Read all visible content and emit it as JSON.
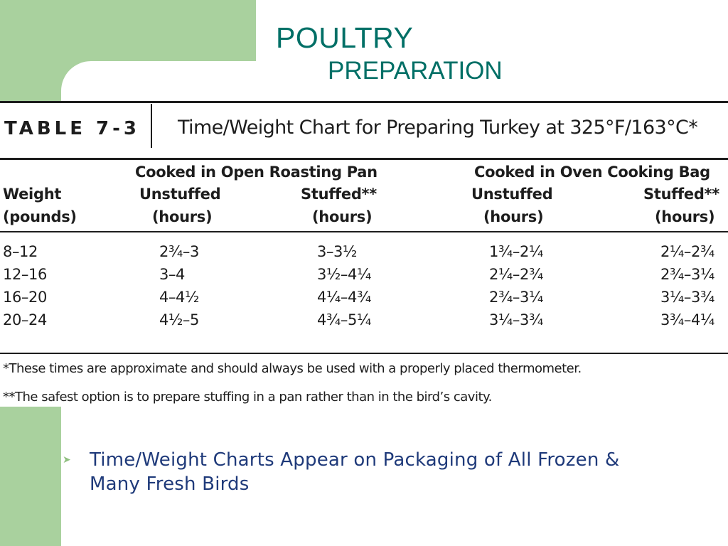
{
  "slide": {
    "title_line1": "POULTRY",
    "title_line2": "PREPARATION",
    "bullet": "Time/Weight Charts Appear on Packaging of All Frozen & Many Fresh Birds",
    "colors": {
      "accent_green": "#a9d19e",
      "title": "#006f66",
      "bullet_text": "#1f3a7a"
    }
  },
  "table": {
    "number": "TABLE 7-3",
    "title": "Time/Weight Chart for Preparing Turkey at 325°F/163°C*",
    "group_headers": [
      "Cooked in Open Roasting Pan",
      "Cooked in Oven Cooking Bag"
    ],
    "weight_header": [
      "Weight",
      "(pounds)"
    ],
    "col_headers": [
      [
        "Unstuffed",
        "(hours)"
      ],
      [
        "Stuffed**",
        "(hours)"
      ],
      [
        "Unstuffed",
        "(hours)"
      ],
      [
        "Stuffed**",
        "(hours)"
      ]
    ],
    "rows": [
      [
        "8–12",
        "2¾–3",
        "3–3½",
        "1¾–2¼",
        "2¼–2¾"
      ],
      [
        "12–16",
        "3–4",
        "3½–4¼",
        "2¼–2¾",
        "2¾–3¼"
      ],
      [
        "16–20",
        "4–4½",
        "4¼–4¾",
        "2¾–3¼",
        "3¼–3¾"
      ],
      [
        "20–24",
        "4½–5",
        "4¾–5¼",
        "3¼–3¾",
        "3¾–4¼"
      ]
    ],
    "footnotes": [
      "*These times are approximate and should always be used with a properly placed thermometer.",
      "**The safest option is to prepare stuffing in a pan rather than in the bird’s cavity."
    ]
  }
}
